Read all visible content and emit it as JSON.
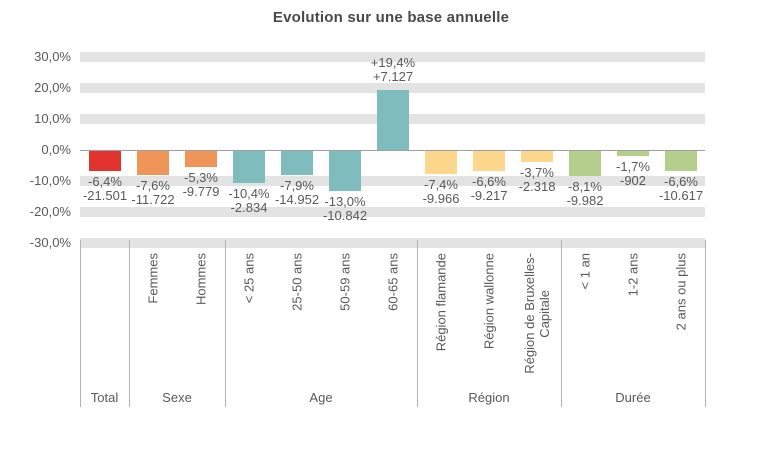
{
  "title": "Evolution sur une base annuelle",
  "colors": {
    "total": "#e3332e",
    "sexe": "#ef9559",
    "age": "#7fbcbd",
    "region": "#fdd78c",
    "duree": "#b4cf8b",
    "grid_band": "#e3e3e3",
    "zero_line": "#9f9f9f",
    "divider": "#b3b3b3",
    "text": "#595959",
    "title_text": "#4a4a4a"
  },
  "chart_data": {
    "type": "bar",
    "title": "Evolution sur une base annuelle",
    "ylabel": "",
    "xlabel": "",
    "y_unit": "%",
    "ylim": [
      -30,
      30
    ],
    "y_ticks": [
      {
        "value": 30,
        "label": "30,0%"
      },
      {
        "value": 20,
        "label": "20,0%"
      },
      {
        "value": 10,
        "label": "10,0%"
      },
      {
        "value": 0,
        "label": "0,0%"
      },
      {
        "value": -10,
        "label": "-10,0%"
      },
      {
        "value": -20,
        "label": "-20,0%"
      },
      {
        "value": -30,
        "label": "-30,0%"
      }
    ],
    "grid": "band-style horizontal gridlines at every 10%, zero axis line solid",
    "legend": "none",
    "groups": [
      {
        "label": "Total",
        "color_key": "total",
        "bars": [
          {
            "category": "",
            "pct": -6.4,
            "value": -21501,
            "pct_label": "-6,4%",
            "value_label": "-21.501"
          }
        ]
      },
      {
        "label": "Sexe",
        "color_key": "sexe",
        "bars": [
          {
            "category": "Femmes",
            "pct": -7.6,
            "value": -11722,
            "pct_label": "-7,6%",
            "value_label": "-11.722"
          },
          {
            "category": "Hommes",
            "pct": -5.3,
            "value": -9779,
            "pct_label": "-5,3%",
            "value_label": "-9.779"
          }
        ]
      },
      {
        "label": "Age",
        "color_key": "age",
        "bars": [
          {
            "category": "< 25 ans",
            "pct": -10.4,
            "value": -2834,
            "pct_label": "-10,4%",
            "value_label": "-2.834"
          },
          {
            "category": "25-50 ans",
            "pct": -7.9,
            "value": -14952,
            "pct_label": "-7,9%",
            "value_label": "-14.952"
          },
          {
            "category": "50-59 ans",
            "pct": -13.0,
            "value": -10842,
            "pct_label": "-13,0%",
            "value_label": "-10.842"
          },
          {
            "category": "60-65 ans",
            "pct": 19.4,
            "value": 7127,
            "pct_label": "+19,4%",
            "value_label": "+7.127"
          }
        ]
      },
      {
        "label": "Région",
        "color_key": "region",
        "bars": [
          {
            "category": "Région flamande",
            "pct": -7.4,
            "value": -9966,
            "pct_label": "-7,4%",
            "value_label": "-9.966"
          },
          {
            "category": "Région wallonne",
            "pct": -6.6,
            "value": -9217,
            "pct_label": "-6,6%",
            "value_label": "-9.217"
          },
          {
            "category": "Région de Bruxelles-\nCapitale",
            "pct": -3.7,
            "value": -2318,
            "pct_label": "-3,7%",
            "value_label": "-2.318"
          }
        ]
      },
      {
        "label": "Durée",
        "color_key": "duree",
        "bars": [
          {
            "category": "< 1 an",
            "pct": -8.1,
            "value": -9982,
            "pct_label": "-8,1%",
            "value_label": "-9.982"
          },
          {
            "category": "1-2 ans",
            "pct": -1.7,
            "value": -902,
            "pct_label": "-1,7%",
            "value_label": "-902"
          },
          {
            "category": "2 ans ou plus",
            "pct": -6.6,
            "value": -10617,
            "pct_label": "-6,6%",
            "value_label": "-10.617"
          }
        ]
      }
    ]
  }
}
